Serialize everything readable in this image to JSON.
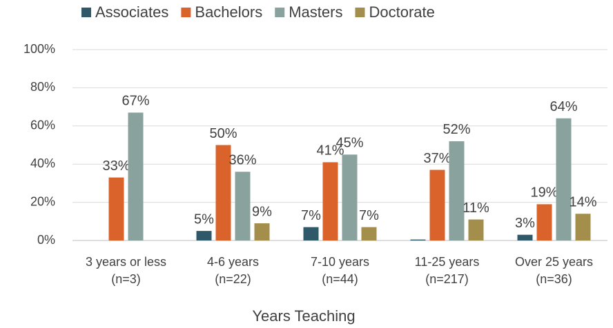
{
  "chart_data": {
    "type": "bar",
    "x_label": "Years Teaching",
    "categories": [
      "3 years or less",
      "4-6 years",
      "7-10 years",
      "11-25 years",
      "Over 25 years"
    ],
    "category_notes": [
      "(n=3)",
      "(n=22)",
      "(n=44)",
      "(n=217)",
      "(n=36)"
    ],
    "series": [
      {
        "name": "Associates",
        "color": "#2f5968",
        "values": [
          0,
          5,
          7,
          0.5,
          3
        ],
        "value_labels": [
          null,
          "5%",
          "7%",
          null,
          "3%"
        ]
      },
      {
        "name": "Bachelors",
        "color": "#d9632b",
        "values": [
          33,
          50,
          41,
          37,
          19
        ],
        "value_labels": [
          "33%",
          "50%",
          "41%",
          "37%",
          "19%"
        ]
      },
      {
        "name": "Masters",
        "color": "#8aa29e",
        "values": [
          67,
          36,
          45,
          52,
          64
        ],
        "value_labels": [
          "67%",
          "36%",
          "45%",
          "52%",
          "64%"
        ]
      },
      {
        "name": "Doctorate",
        "color": "#a38f4b",
        "values": [
          0,
          9,
          7,
          11,
          14
        ],
        "value_labels": [
          null,
          "9%",
          "7%",
          "11%",
          "14%"
        ]
      }
    ],
    "ylim": [
      0,
      100
    ],
    "yticks": [
      {
        "value": 0,
        "label": "0%"
      },
      {
        "value": 20,
        "label": "20%"
      },
      {
        "value": 40,
        "label": "40%"
      },
      {
        "value": 60,
        "label": "60%"
      },
      {
        "value": 80,
        "label": "80%"
      },
      {
        "value": 100,
        "label": "100%"
      }
    ],
    "grid": true,
    "legend": "top"
  }
}
